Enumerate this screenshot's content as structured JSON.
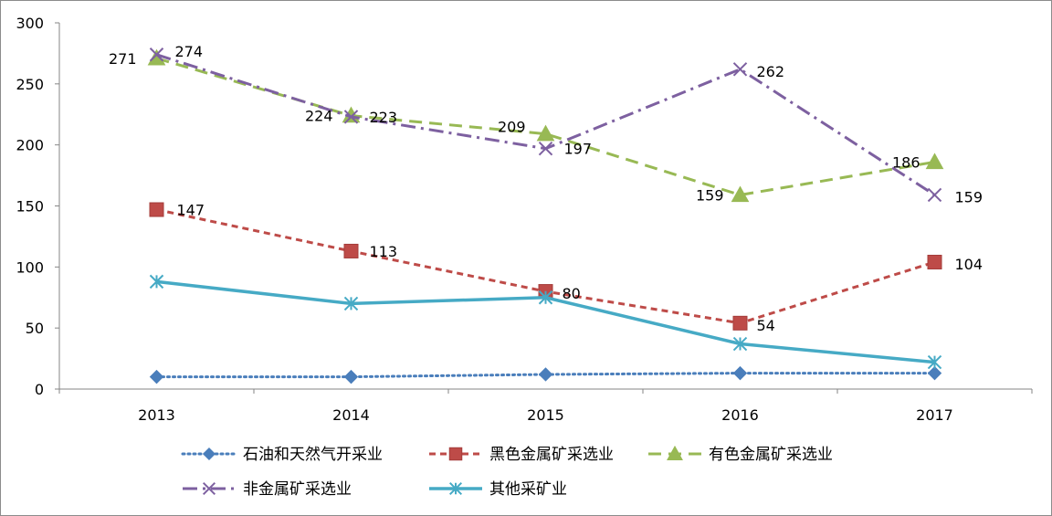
{
  "chart_data": {
    "type": "line",
    "categories": [
      "2013",
      "2014",
      "2015",
      "2016",
      "2017"
    ],
    "ylim": [
      0,
      300
    ],
    "yticks": [
      0,
      50,
      100,
      150,
      200,
      250,
      300
    ],
    "grid": false,
    "legend_position": "bottom",
    "series": [
      {
        "name": "石油和天然气开采业",
        "values": [
          10,
          10,
          12,
          13,
          13
        ],
        "labels": [
          "",
          "",
          "",
          "",
          ""
        ],
        "color": "#4a7ebb",
        "dash": "2,4",
        "marker": "diamond"
      },
      {
        "name": "黑色金属矿采选业",
        "values": [
          147,
          113,
          80,
          54,
          104
        ],
        "labels": [
          "147",
          "113",
          "80",
          "54",
          "104"
        ],
        "color": "#be4b48",
        "dash": "7,5",
        "marker": "square"
      },
      {
        "name": "有色金属矿采选业",
        "values": [
          271,
          224,
          209,
          159,
          186
        ],
        "labels": [
          "271",
          "224",
          "209",
          "159",
          "186"
        ],
        "color": "#98b954",
        "dash": "14,8",
        "marker": "triangle"
      },
      {
        "name": "非金属矿采选业",
        "values": [
          274,
          223,
          197,
          262,
          159
        ],
        "labels": [
          "274",
          "223",
          "197",
          "262",
          "159"
        ],
        "color": "#7d60a0",
        "dash": "16,6,3,6",
        "marker": "x"
      },
      {
        "name": "其他采矿业",
        "values": [
          88,
          70,
          75,
          37,
          22
        ],
        "labels": [
          "",
          "",
          "",
          "",
          ""
        ],
        "color": "#46aac5",
        "dash": "",
        "marker": "star"
      }
    ]
  }
}
